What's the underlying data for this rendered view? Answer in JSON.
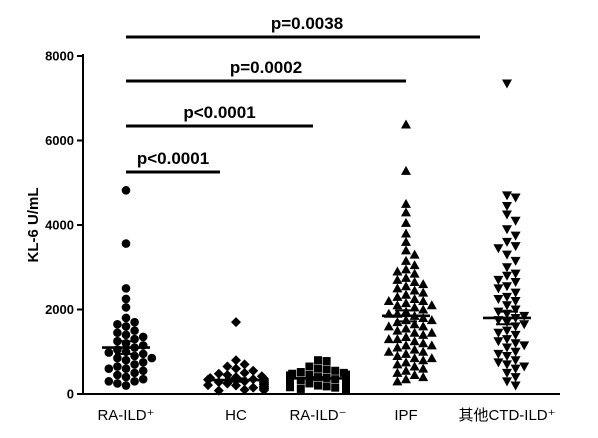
{
  "chart_data": {
    "type": "scatter",
    "ylabel": "KL-6 U/mL",
    "ylim": [
      0,
      8000
    ],
    "yticks": [
      0,
      2000,
      4000,
      6000,
      8000
    ],
    "grid": false,
    "categories": [
      "RA-ILD⁺",
      "HC",
      "RA-ILD⁻",
      "IPF",
      "其他CTD-ILD⁺"
    ],
    "series": [
      {
        "category": "RA-ILD⁺",
        "marker": "circle",
        "mean": 1100,
        "sem": 150,
        "values": [
          4820,
          3560,
          2500,
          2250,
          2050,
          1800,
          1650,
          1500,
          1450,
          1350,
          1300,
          1250,
          1200,
          1150,
          1100,
          1050,
          1000,
          980,
          950,
          900,
          850,
          800,
          750,
          700,
          650,
          600,
          550,
          500,
          450,
          400,
          350,
          300,
          250,
          200,
          1700,
          1400,
          1600,
          850,
          600,
          300
        ]
      },
      {
        "category": "HC",
        "marker": "diamond",
        "mean": 330,
        "sem": 40,
        "values": [
          1700,
          800,
          700,
          650,
          600,
          550,
          500,
          480,
          450,
          420,
          400,
          380,
          360,
          350,
          340,
          330,
          320,
          300,
          290,
          280,
          270,
          260,
          250,
          240,
          230,
          220,
          210,
          200,
          190,
          180,
          170,
          160,
          150,
          140,
          130,
          120,
          110,
          100,
          90,
          80
        ]
      },
      {
        "category": "RA-ILD⁻",
        "marker": "square",
        "mean": 370,
        "sem": 30,
        "values": [
          800,
          780,
          650,
          600,
          580,
          550,
          520,
          500,
          480,
          460,
          450,
          440,
          420,
          400,
          390,
          380,
          370,
          360,
          350,
          340,
          330,
          320,
          310,
          300,
          290,
          280,
          270,
          260,
          250,
          240,
          230,
          220,
          210,
          200,
          180,
          160,
          150,
          130,
          120,
          100
        ]
      },
      {
        "category": "IPF",
        "marker": "triangle-up",
        "mean": 1850,
        "sem": 130,
        "values": [
          6380,
          5280,
          4500,
          4300,
          4050,
          3800,
          3600,
          3400,
          3300,
          3150,
          3050,
          2950,
          2850,
          2750,
          2650,
          2550,
          2500,
          2450,
          2400,
          2350,
          2300,
          2250,
          2200,
          2150,
          2100,
          2050,
          2000,
          1950,
          1900,
          1850,
          1800,
          1750,
          1700,
          1650,
          1600,
          1550,
          1500,
          1450,
          1400,
          1350,
          1300,
          1250,
          1200,
          1150,
          1100,
          1050,
          1000,
          950,
          900,
          850,
          800,
          750,
          700,
          650,
          600,
          550,
          500,
          450,
          400,
          350,
          300,
          2700,
          2200,
          1900,
          1600,
          1300,
          1000,
          2900,
          1750,
          1450,
          1150,
          850,
          2600,
          2100
        ]
      },
      {
        "category": "其他CTD-ILD⁺",
        "marker": "triangle-down",
        "mean": 1800,
        "sem": 150,
        "values": [
          7350,
          4700,
          4650,
          4450,
          4250,
          4100,
          3900,
          3750,
          3600,
          3450,
          3300,
          3150,
          3000,
          2850,
          2700,
          2550,
          2400,
          2300,
          2200,
          2100,
          2000,
          1900,
          1800,
          1700,
          1600,
          1500,
          1400,
          1300,
          1200,
          1100,
          1000,
          900,
          800,
          700,
          600,
          500,
          400,
          300,
          200,
          3500,
          2800,
          2500,
          1950,
          1650,
          1250,
          950,
          650,
          2650,
          1850,
          1450,
          1150,
          750,
          2250,
          1750
        ]
      }
    ],
    "comparisons": [
      {
        "from": "RA-ILD⁺",
        "to": "HC",
        "label": "p<0.0001"
      },
      {
        "from": "RA-ILD⁺",
        "to": "RA-ILD⁻",
        "label": "p<0.0001"
      },
      {
        "from": "RA-ILD⁺",
        "to": "IPF",
        "label": "p=0.0002"
      },
      {
        "from": "RA-ILD⁺",
        "to": "其他CTD-ILD⁺",
        "label": "p=0.0038"
      }
    ]
  }
}
